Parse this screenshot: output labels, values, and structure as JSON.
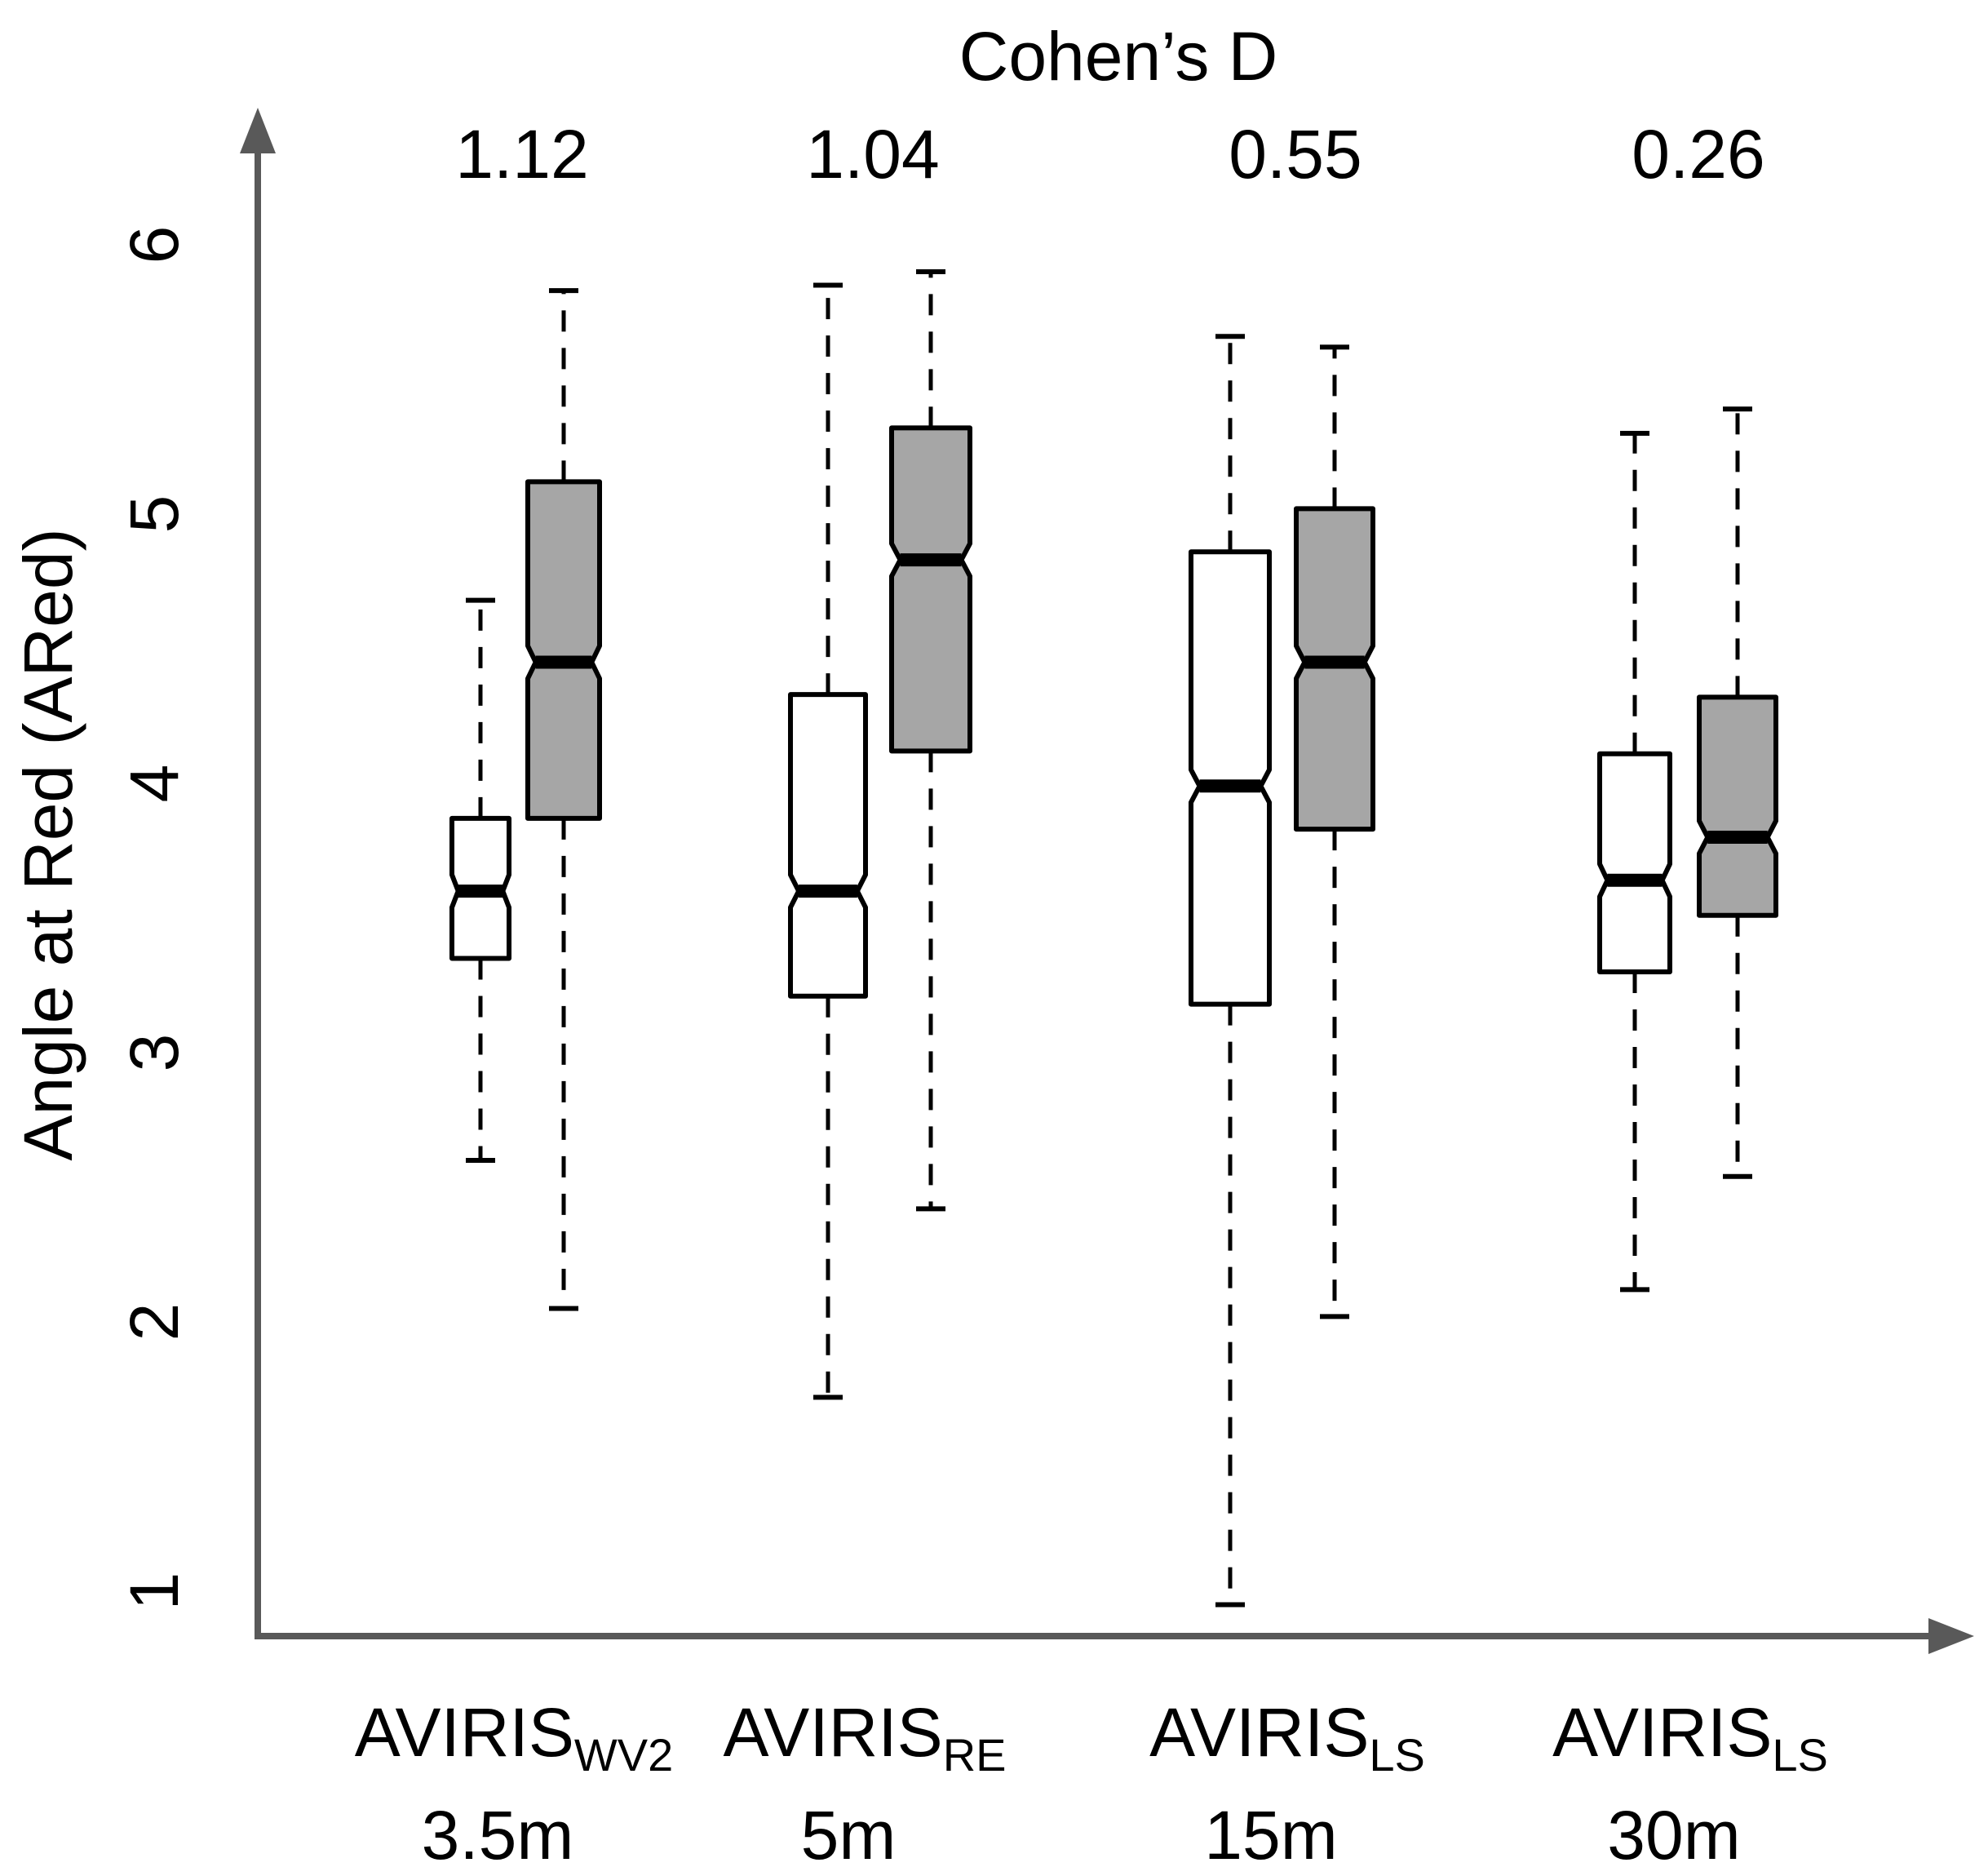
{
  "chart_data": {
    "type": "boxplot",
    "title": "Cohen’s D",
    "ylabel": "Angle at Red (ARed)",
    "xlabel": "",
    "ylim": [
      0.9,
      6.4
    ],
    "yticks": [
      "1",
      "2",
      "3",
      "4",
      "5",
      "6"
    ],
    "ytick_values": [
      1,
      2,
      3,
      4,
      5,
      6
    ],
    "groups": [
      {
        "label_main": "AVIRIS",
        "label_sub": "WV2",
        "label_res": "3.5m",
        "cohens_d": "1.12",
        "boxes": [
          {
            "fill": "white",
            "whisker_low": 2.6,
            "q1": 3.35,
            "median": 3.6,
            "q3": 3.87,
            "whisker_high": 4.68
          },
          {
            "fill": "grey",
            "whisker_low": 2.05,
            "q1": 3.87,
            "median": 4.45,
            "q3": 5.12,
            "whisker_high": 5.83
          }
        ]
      },
      {
        "label_main": "AVIRIS",
        "label_sub": "RE",
        "label_res": "5m",
        "cohens_d": "1.04",
        "boxes": [
          {
            "fill": "white",
            "whisker_low": 1.72,
            "q1": 3.21,
            "median": 3.6,
            "q3": 4.33,
            "whisker_high": 5.85
          },
          {
            "fill": "grey",
            "whisker_low": 2.42,
            "q1": 4.12,
            "median": 4.83,
            "q3": 5.32,
            "whisker_high": 5.9
          }
        ]
      },
      {
        "label_main": "AVIRIS",
        "label_sub": "LS",
        "label_res": "15m",
        "cohens_d": "0.55",
        "boxes": [
          {
            "fill": "white",
            "whisker_low": 0.95,
            "q1": 3.18,
            "median": 3.99,
            "q3": 4.86,
            "whisker_high": 5.66
          },
          {
            "fill": "grey",
            "whisker_low": 2.02,
            "q1": 3.83,
            "median": 4.45,
            "q3": 5.02,
            "whisker_high": 5.62
          }
        ]
      },
      {
        "label_main": "AVIRIS",
        "label_sub": "LS",
        "label_res": "30m",
        "cohens_d": "0.26",
        "boxes": [
          {
            "fill": "white",
            "whisker_low": 2.12,
            "q1": 3.3,
            "median": 3.64,
            "q3": 4.11,
            "whisker_high": 5.3
          },
          {
            "fill": "grey",
            "whisker_low": 2.54,
            "q1": 3.51,
            "median": 3.8,
            "q3": 4.32,
            "whisker_high": 5.39
          }
        ]
      }
    ],
    "colors": {
      "grey_box": "#a6a6a6",
      "white_box": "#ffffff",
      "axis": "#595959"
    }
  }
}
